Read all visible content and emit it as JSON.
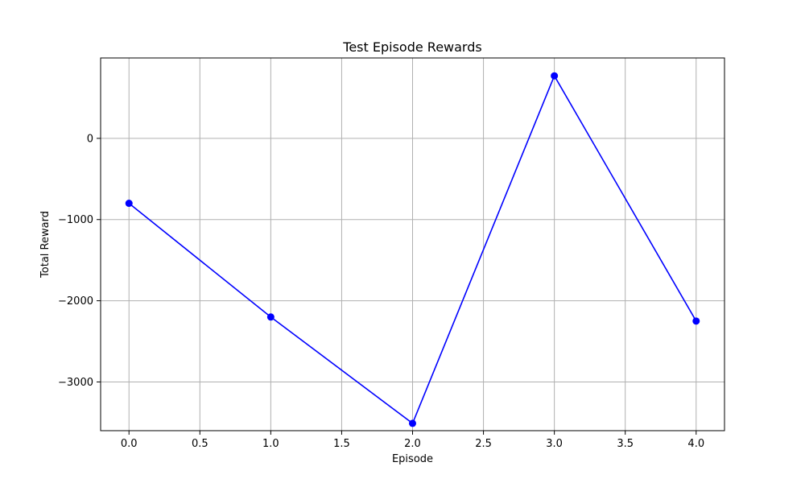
{
  "chart_data": {
    "type": "line",
    "title": "Test Episode Rewards",
    "xlabel": "Episode",
    "ylabel": "Total Reward",
    "xlim": [
      -0.2,
      4.2
    ],
    "ylim": [
      -3600,
      990
    ],
    "xticks": [
      0.0,
      0.5,
      1.0,
      1.5,
      2.0,
      2.5,
      3.0,
      3.5,
      4.0
    ],
    "xtick_labels": [
      "0.0",
      "0.5",
      "1.0",
      "1.5",
      "2.0",
      "2.5",
      "3.0",
      "3.5",
      "4.0"
    ],
    "yticks": [
      0,
      -1000,
      -2000,
      -3000
    ],
    "ytick_labels": [
      "0",
      "−1000",
      "−2000",
      "−3000"
    ],
    "grid": true,
    "series": [
      {
        "color": "#0000ff",
        "marker": "circle",
        "x": [
          0,
          1,
          2,
          3,
          4
        ],
        "values": [
          -800,
          -2200,
          -3510,
          770,
          -2250
        ]
      }
    ]
  }
}
